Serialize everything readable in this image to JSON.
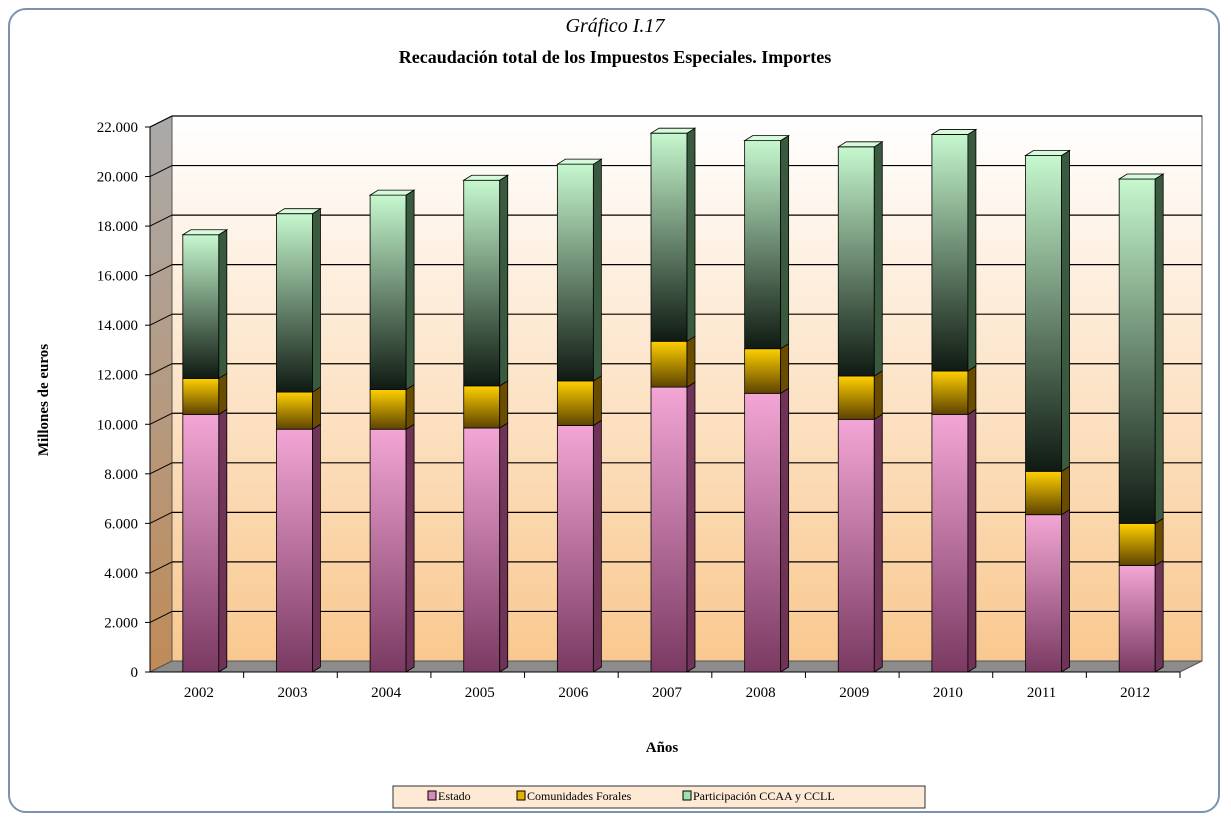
{
  "chart_data": {
    "type": "bar",
    "stacked": true,
    "title": "Gráfico I.17",
    "subtitle": "Recaudación total de los Impuestos Especiales.  Importes",
    "xlabel": "Años",
    "ylabel": "Millones de euros",
    "ylim": [
      0,
      22000
    ],
    "yticks": [
      "0",
      "2.000",
      "4.000",
      "6.000",
      "8.000",
      "10.000",
      "12.000",
      "14.000",
      "16.000",
      "18.000",
      "20.000",
      "22.000"
    ],
    "categories": [
      "2002",
      "2003",
      "2004",
      "2005",
      "2006",
      "2007",
      "2008",
      "2009",
      "2010",
      "2011",
      "2012"
    ],
    "series": [
      {
        "name": "Estado",
        "values": [
          10400,
          9800,
          9800,
          9850,
          9950,
          11500,
          11250,
          10200,
          10400,
          6350,
          4300
        ]
      },
      {
        "name": "Comunidades Forales",
        "values": [
          1450,
          1500,
          1600,
          1700,
          1800,
          1850,
          1800,
          1750,
          1750,
          1750,
          1700
        ]
      },
      {
        "name": "Participación CCAA y CCLL",
        "values": [
          5800,
          7200,
          7850,
          8300,
          8750,
          8400,
          8400,
          9250,
          9550,
          12750,
          13900
        ]
      }
    ],
    "grid": true,
    "legend_position": "bottom",
    "colors": {
      "Estado": "#d98ab8",
      "Comunidades Forales": "#e8b000",
      "Participación CCAA y CCLL": "#9fe2ad"
    }
  }
}
